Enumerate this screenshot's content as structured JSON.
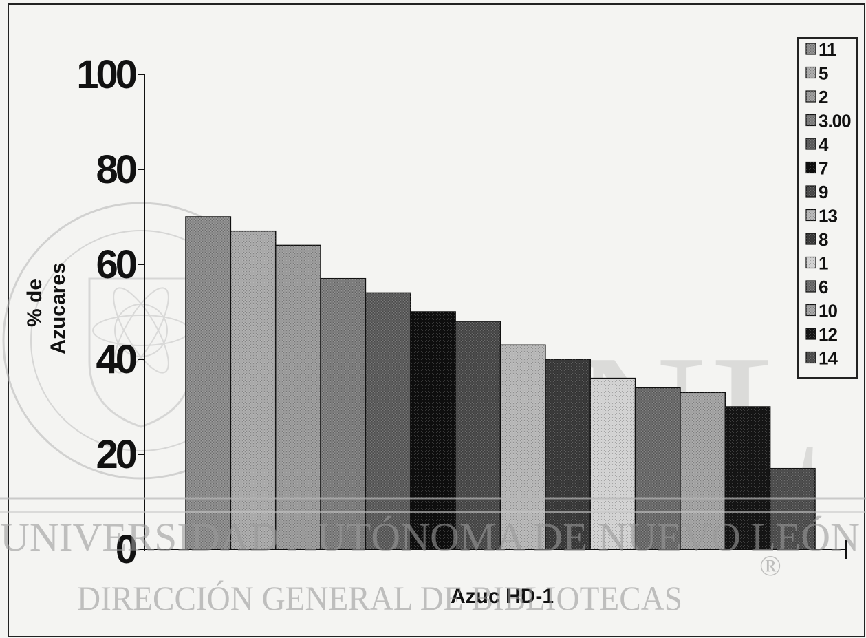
{
  "chart_data": {
    "type": "bar",
    "categories": [
      "Azuc HD-1"
    ],
    "series": [
      {
        "name": "11",
        "values": [
          70
        ],
        "color": "#8a8a8a"
      },
      {
        "name": "5",
        "values": [
          67
        ],
        "color": "#a9a9a9"
      },
      {
        "name": "2",
        "values": [
          64
        ],
        "color": "#9a9a9a"
      },
      {
        "name": "3.00",
        "values": [
          57
        ],
        "color": "#7c7c7c"
      },
      {
        "name": "4",
        "values": [
          54
        ],
        "color": "#5c5c5c"
      },
      {
        "name": "7",
        "values": [
          50
        ],
        "color": "#0e0e0e"
      },
      {
        "name": "9",
        "values": [
          48
        ],
        "color": "#4a4a4a"
      },
      {
        "name": "13",
        "values": [
          43
        ],
        "color": "#b6b6b6"
      },
      {
        "name": "8",
        "values": [
          40
        ],
        "color": "#3a3a3a"
      },
      {
        "name": "1",
        "values": [
          36
        ],
        "color": "#d2d2d2"
      },
      {
        "name": "6",
        "values": [
          34
        ],
        "color": "#6a6a6a"
      },
      {
        "name": "10",
        "values": [
          33
        ],
        "color": "#a2a2a2"
      },
      {
        "name": "12",
        "values": [
          30
        ],
        "color": "#151515"
      },
      {
        "name": "14",
        "values": [
          17
        ],
        "color": "#4e4e4e"
      }
    ],
    "xlabel": "Azuc HD-1",
    "ylabel": [
      "% de",
      "Azucares"
    ],
    "ylim": [
      0,
      100
    ],
    "yticks": [
      "0",
      "20",
      "40",
      "60",
      "80",
      "100"
    ],
    "legend": "right",
    "grid": false
  },
  "watermark": {
    "line1": "UNIVERSIDAD AUTÓNOMA DE NUEVO LEÓN",
    "line2": "DIRECCIÓN GENERAL DE BIBLIOTECAS",
    "letters": "UANL",
    "mark": "®"
  }
}
